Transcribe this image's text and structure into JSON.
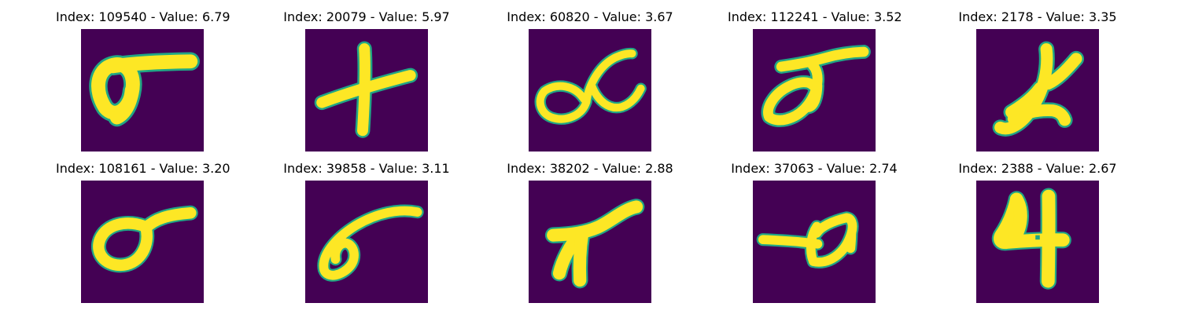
{
  "colors": {
    "background": "#ffffff",
    "image_background": "#440154",
    "ink_core": "#fde725",
    "ink_edge": "#21a685"
  },
  "panels": [
    {
      "title": "Index: 109540 - Value: 6.79"
    },
    {
      "title": "Index: 20079 - Value: 5.97"
    },
    {
      "title": "Index: 60820 - Value: 3.67"
    },
    {
      "title": "Index: 112241 - Value: 3.52"
    },
    {
      "title": "Index: 2178 - Value: 3.35"
    },
    {
      "title": "Index: 108161 - Value: 3.20"
    },
    {
      "title": "Index: 39858 - Value: 3.11"
    },
    {
      "title": "Index: 38202 - Value: 2.88"
    },
    {
      "title": "Index: 37063 - Value: 2.74"
    },
    {
      "title": "Index: 2388 - Value: 2.67"
    }
  ]
}
